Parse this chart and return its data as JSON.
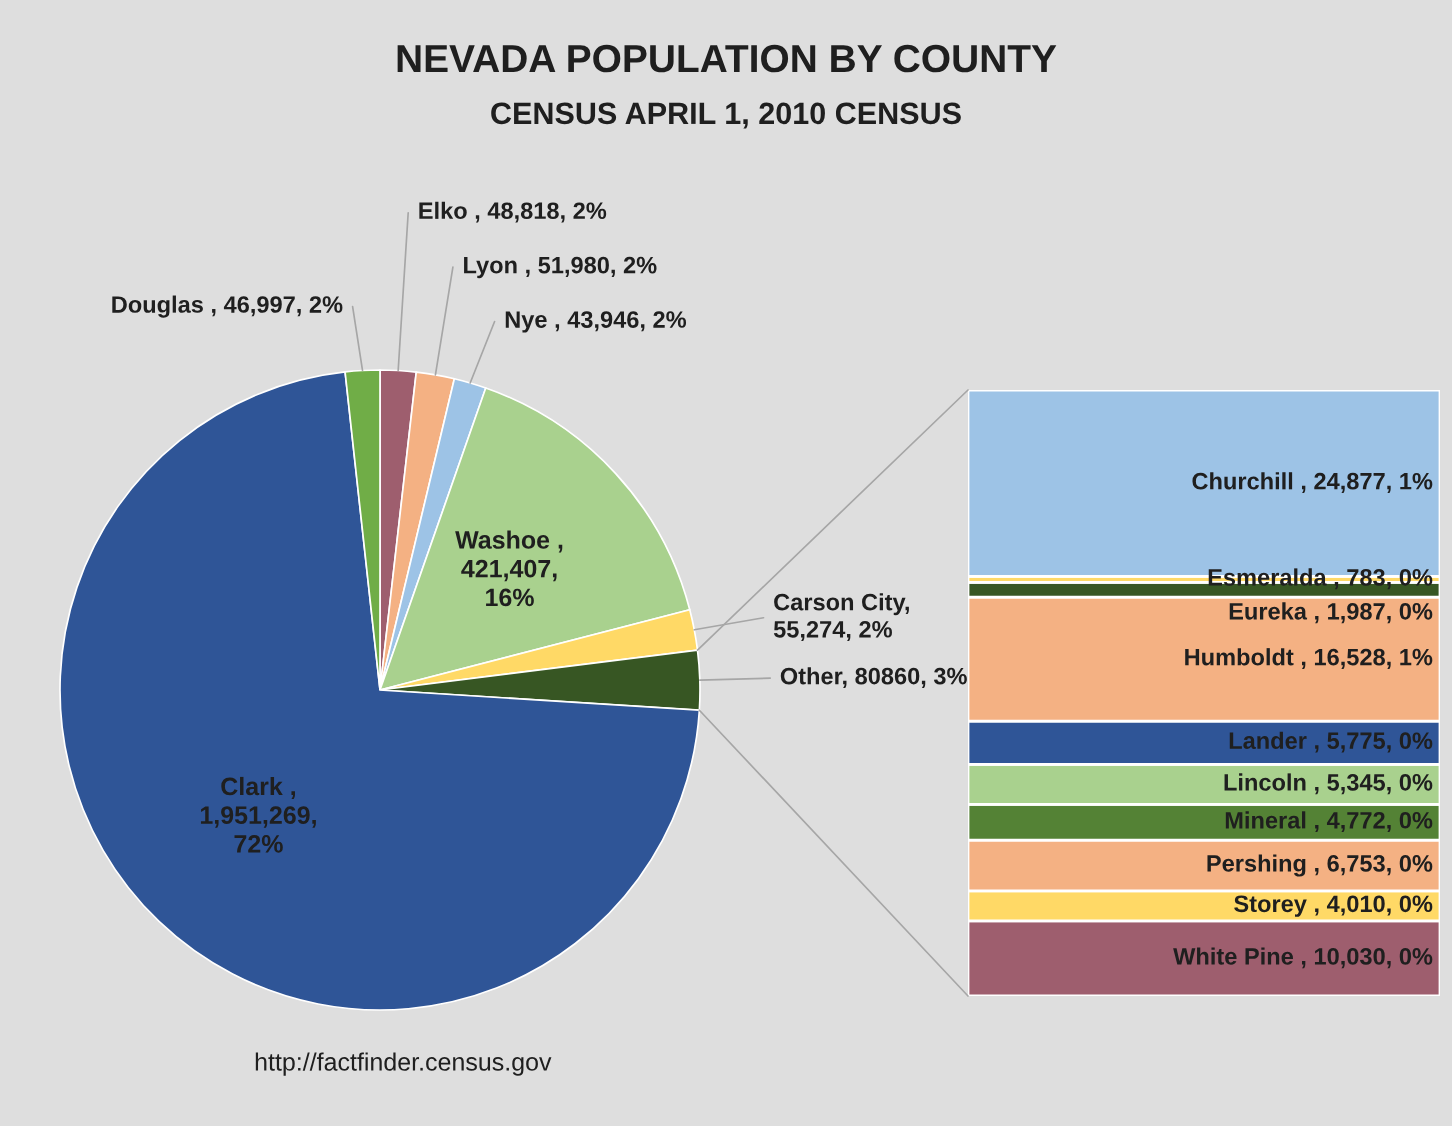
{
  "chart_data": [
    {
      "type": "pie",
      "title": "NEVADA POPULATION BY COUNTY",
      "subtitle": "CENSUS APRIL 1, 2010 CENSUS",
      "categories": [
        null,
        null,
        null,
        null,
        null,
        null,
        null,
        null
      ],
      "values": [
        48818,
        51980,
        43946,
        421407,
        55274,
        80860,
        1951269,
        46997
      ],
      "colors": [
        "#9e5e6e",
        "#f4b183",
        "#9dc3e6",
        "#a9d18e",
        "#ffd966",
        "#375623",
        "#2f5597",
        "#70ad47"
      ],
      "value_labels": [
        "Elko , 48,818, 2%",
        "Lyon , 51,980, 2%",
        "Nye , 43,946, 2%",
        "Washoe ,\n421,407,\n16%",
        "Carson City,\n55,274, 2%",
        "Other, 80860, 3%",
        "Clark ,\n1,951,269,\n72%",
        "Douglas , 46,997, 2%"
      ],
      "annotations": [
        "http://factfinder.census.gov"
      ]
    },
    {
      "type": "bar",
      "stacked": true,
      "categories": [
        null
      ],
      "series": [
        {
          "color": "#9e5e6e",
          "values": [
            10030
          ],
          "value_labels": [
            "White Pine , 10,030, 0%"
          ]
        },
        {
          "color": "#ffd966",
          "values": [
            4010
          ],
          "value_labels": [
            "Storey , 4,010, 0%"
          ]
        },
        {
          "color": "#f4b183",
          "values": [
            6753
          ],
          "value_labels": [
            "Pershing , 6,753, 0%"
          ]
        },
        {
          "color": "#548235",
          "values": [
            4772
          ],
          "value_labels": [
            "Mineral , 4,772, 0%"
          ]
        },
        {
          "color": "#a9d18e",
          "values": [
            5345
          ],
          "value_labels": [
            "Lincoln , 5,345, 0%"
          ]
        },
        {
          "color": "#2f5597",
          "values": [
            5775
          ],
          "value_labels": [
            "Lander , 5,775, 0%"
          ]
        },
        {
          "color": "#f4b183",
          "values": [
            16528
          ],
          "value_labels": [
            "Humboldt , 16,528, 1%"
          ]
        },
        {
          "color": "#375623",
          "values": [
            1987
          ],
          "value_labels": [
            "Eureka , 1,987, 0%"
          ]
        },
        {
          "color": "#ffd966",
          "values": [
            783
          ],
          "value_labels": [
            "Esmeralda , 783, 0%"
          ]
        },
        {
          "color": "#9dc3e6",
          "values": [
            24877
          ],
          "value_labels": [
            "Churchill , 24,877, 1%"
          ]
        }
      ]
    }
  ]
}
